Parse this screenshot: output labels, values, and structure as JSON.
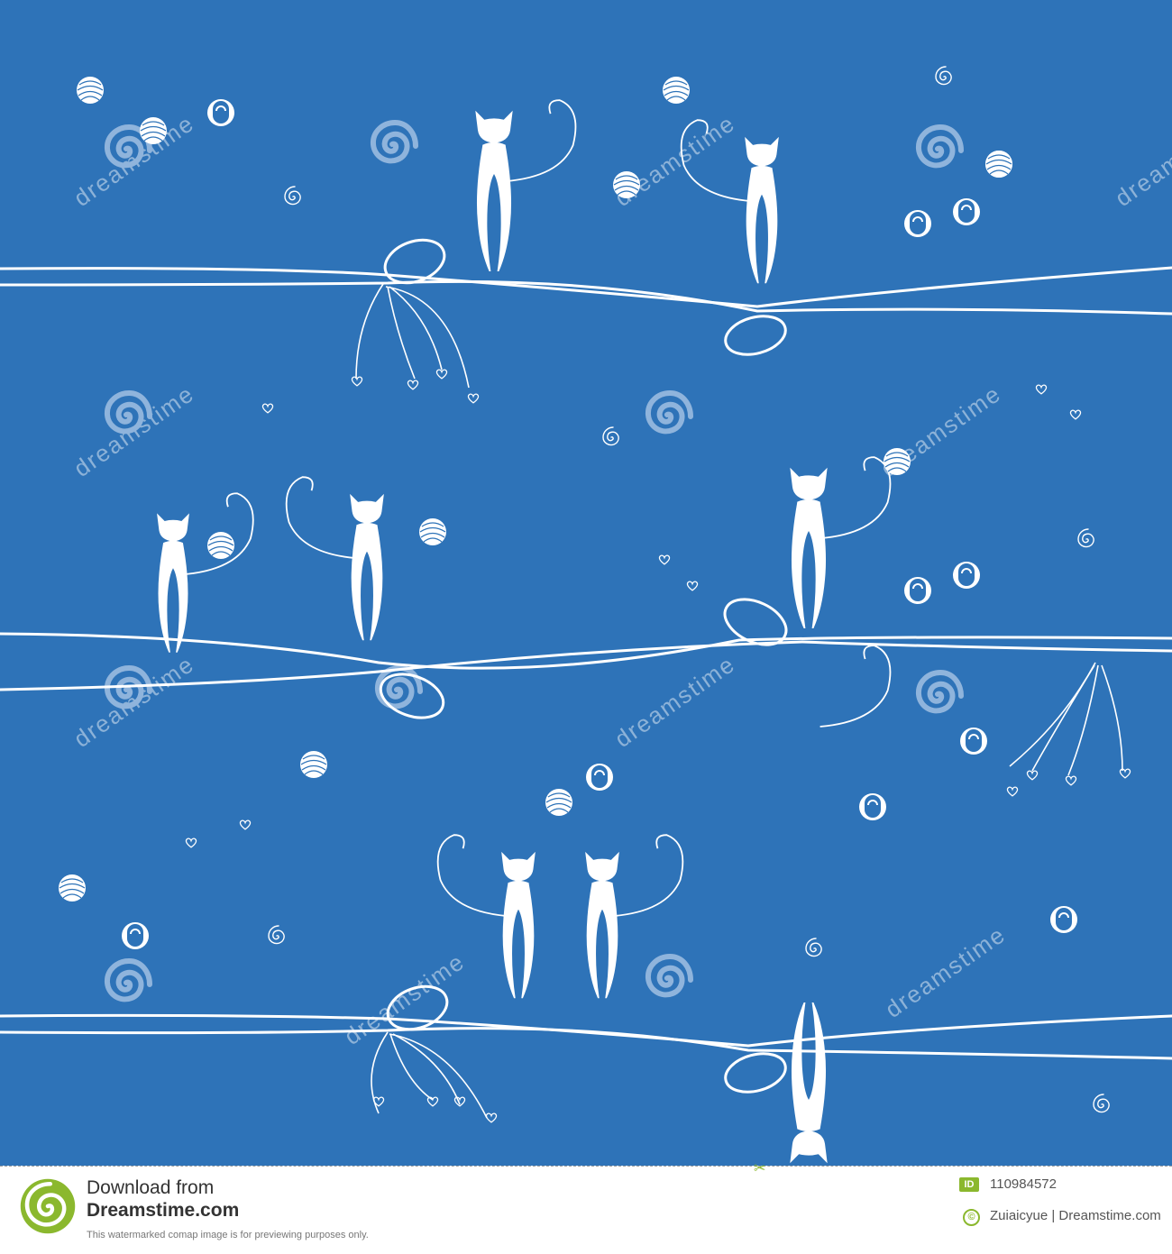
{
  "artwork": {
    "subject": "white cats sitting on wires with yarn balls, hearts and swirls",
    "background_color": "#2e73b8",
    "figure_color": "#ffffff",
    "watermark": "dreamstime"
  },
  "footer": {
    "download_label": "Download from",
    "site_name": "Dreamstime.com",
    "preview_note": "This watermarked comap image is for previewing purposes only.",
    "id_badge": "ID",
    "image_id": "110984572",
    "copyright_symbol": "©",
    "credit": "Zuiaicyue | Dreamstime.com",
    "accent_color": "#8bb82e"
  }
}
